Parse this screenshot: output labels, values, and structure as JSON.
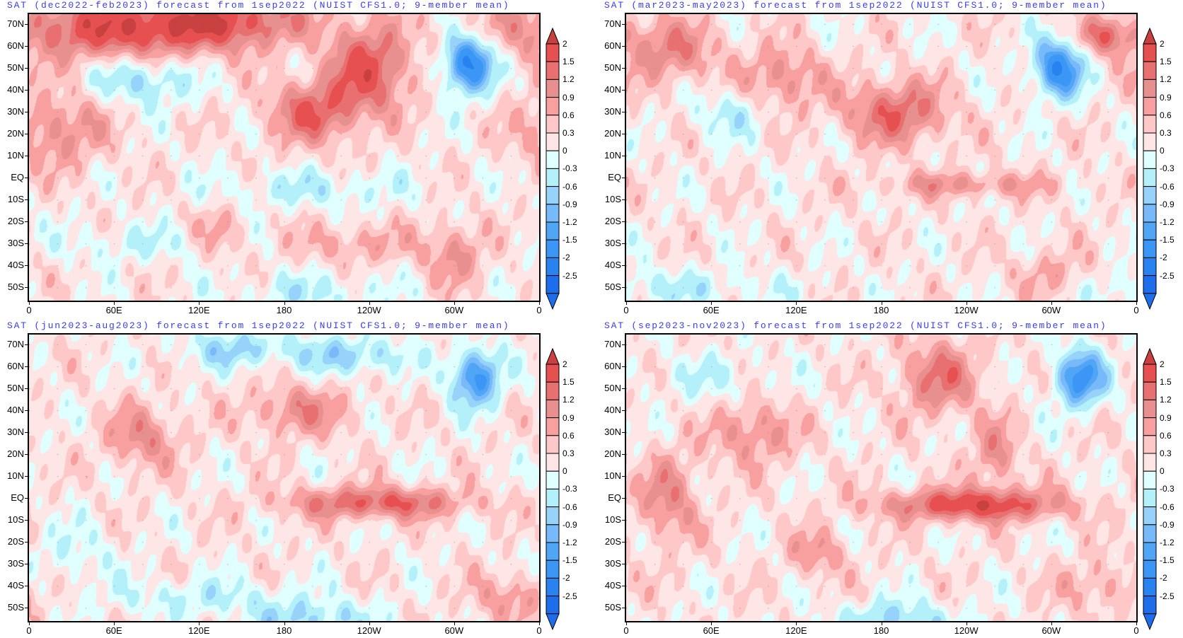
{
  "panels": [
    {
      "id": "djf",
      "title": "SAT (dec2022-feb2023) forecast from 1sep2022 (NUIST CFS1.0; 9-member mean)"
    },
    {
      "id": "mam",
      "title": "SAT (mar2023-may2023) forecast from 1sep2022 (NUIST CFS1.0; 9-member mean)"
    },
    {
      "id": "jja",
      "title": "SAT (jun2023-aug2023) forecast from 1sep2022 (NUIST CFS1.0; 9-member mean)"
    },
    {
      "id": "son",
      "title": "SAT (sep2023-nov2023) forecast from 1sep2022 (NUIST CFS1.0; 9-member mean)"
    }
  ],
  "lat_labels": [
    "70N",
    "60N",
    "50N",
    "40N",
    "30N",
    "20N",
    "10N",
    "EQ",
    "10S",
    "20S",
    "30S",
    "40S",
    "50S"
  ],
  "lat_values": [
    70,
    60,
    50,
    40,
    30,
    20,
    10,
    0,
    -10,
    -20,
    -30,
    -40,
    -50
  ],
  "lon_labels": [
    "0",
    "60E",
    "120E",
    "180",
    "120W",
    "60W",
    "0"
  ],
  "lon_values": [
    0,
    60,
    120,
    180,
    240,
    300,
    360
  ],
  "colorbar": {
    "labels": [
      "2",
      "1.5",
      "1.2",
      "0.9",
      "0.6",
      "0.3",
      "0",
      "-0.3",
      "-0.6",
      "-0.9",
      "-1.2",
      "-1.5",
      "-2",
      "-2.5"
    ],
    "levels": [
      -2.5,
      -2,
      -1.5,
      -1.2,
      -0.9,
      -0.6,
      -0.3,
      0,
      0.3,
      0.6,
      0.9,
      1.2,
      1.5,
      2
    ],
    "colors": [
      "#1e6eeb",
      "#2882f0",
      "#3c96f5",
      "#50a5f5",
      "#78b9fa",
      "#96d2fa",
      "#b4f0fa",
      "#e0ffff",
      "#ffe6e6",
      "#ffc8c8",
      "#f8a0a0",
      "#e89090",
      "#e87070",
      "#e65050",
      "#c84040"
    ]
  }
}
